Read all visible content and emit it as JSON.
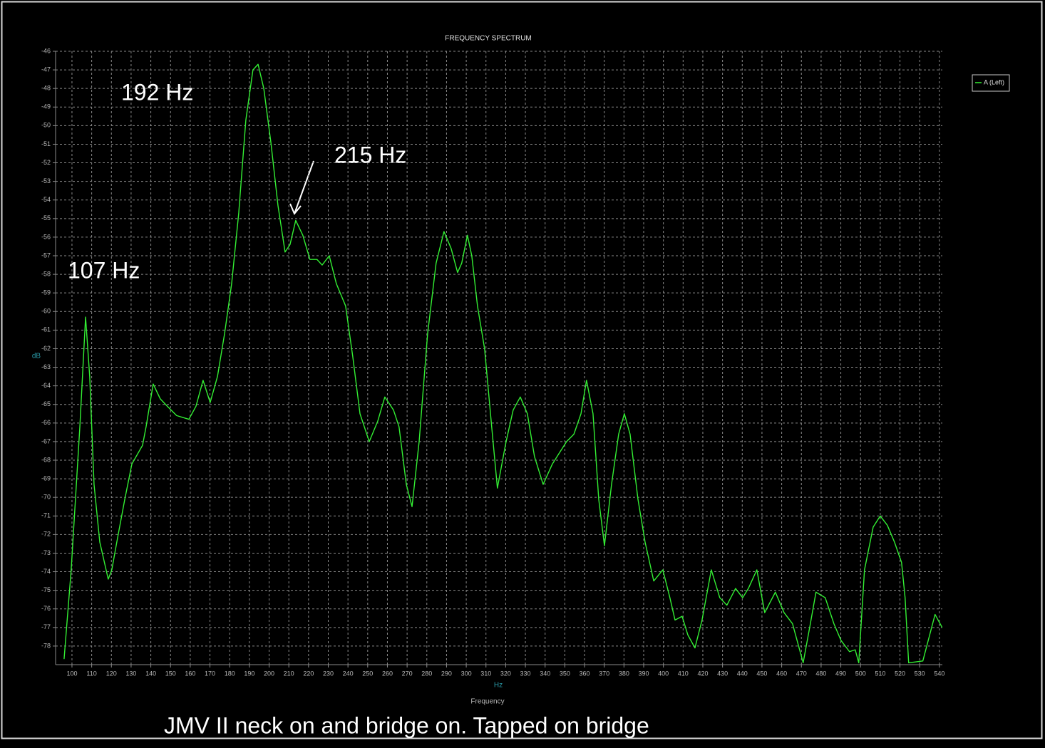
{
  "chart_data": {
    "type": "line",
    "title": "FREQUENCY SPECTRUM",
    "y_label": "dB",
    "x_unit": "Hz",
    "x_label": "Frequency",
    "caption": "JMV II neck on and bridge on. Tapped on bridge",
    "annotations": [
      "192 Hz",
      "215 Hz",
      "107 Hz"
    ],
    "legend_position": "upper right",
    "grid": true,
    "xlim": [
      91.7,
      541.5
    ],
    "ylim": [
      -79,
      -46
    ],
    "xticks": [
      100,
      110,
      120,
      130,
      140,
      150,
      160,
      170,
      180,
      190,
      200,
      210,
      220,
      230,
      240,
      250,
      260,
      270,
      280,
      290,
      300,
      310,
      320,
      330,
      340,
      350,
      360,
      370,
      380,
      390,
      400,
      410,
      420,
      430,
      440,
      450,
      460,
      470,
      480,
      490,
      500,
      510,
      520,
      530,
      540
    ],
    "yticks": [
      -46,
      -47,
      -48,
      -49,
      -50,
      -51,
      -52,
      -53,
      -54,
      -55,
      -56,
      -57,
      -58,
      -59,
      -60,
      -61,
      -62,
      -63,
      -64,
      -65,
      -66,
      -67,
      -68,
      -69,
      -70,
      -71,
      -72,
      -73,
      -74,
      -75,
      -76,
      -77,
      -78
    ],
    "x": [
      96.0,
      99.6,
      104.0,
      106.9,
      109.0,
      111.2,
      114.1,
      118.4,
      120.2,
      123.1,
      126.8,
      130.4,
      135.8,
      137.6,
      141.2,
      144.8,
      148.4,
      153.1,
      159.3,
      162.9,
      166.5,
      170.1,
      173.8,
      177.4,
      181.0,
      184.6,
      188.2,
      191.8,
      194.4,
      197.3,
      200.9,
      204.5,
      208.1,
      210.6,
      213.5,
      217.1,
      220.7,
      224.3,
      226.9,
      230.5,
      234.1,
      238.8,
      242.4,
      246.1,
      250.8,
      255.1,
      258.7,
      263.1,
      265.9,
      269.6,
      272.5,
      276.1,
      280.4,
      284.7,
      288.7,
      292.3,
      295.6,
      297.7,
      300.6,
      302.8,
      305.7,
      309.3,
      312.9,
      315.8,
      320.2,
      323.8,
      327.4,
      331.0,
      334.6,
      339.0,
      343.7,
      347.3,
      350.9,
      354.6,
      358.2,
      361.0,
      364.3,
      367.2,
      370.1,
      373.7,
      377.3,
      380.2,
      383.1,
      387.1,
      390.7,
      395.1,
      399.7,
      403.3,
      405.9,
      409.5,
      412.4,
      416.0,
      419.6,
      424.3,
      428.6,
      432.2,
      436.6,
      440.2,
      443.1,
      447.4,
      451.4,
      456.8,
      461.2,
      465.5,
      470.9,
      474.2,
      477.4,
      482.1,
      486.5,
      490.1,
      494.4,
      497.3,
      499.1,
      502.0,
      506.4,
      510.0,
      513.6,
      517.2,
      520.8,
      522.6,
      524.4,
      531.6,
      537.8,
      541.4
    ],
    "series": [
      {
        "name": "A (Left)",
        "color": "#33ee33",
        "values": [
          -78.7,
          -73.9,
          -66.2,
          -60.3,
          -63.5,
          -69.3,
          -72.4,
          -74.4,
          -73.9,
          -72.2,
          -70.1,
          -68.2,
          -67.2,
          -66.2,
          -63.9,
          -64.7,
          -65.1,
          -65.6,
          -65.8,
          -65.1,
          -63.7,
          -64.9,
          -63.5,
          -61.2,
          -58.5,
          -54.7,
          -49.7,
          -47.0,
          -46.7,
          -48.0,
          -50.9,
          -54.3,
          -56.8,
          -56.4,
          -55.1,
          -55.9,
          -57.2,
          -57.2,
          -57.5,
          -57.0,
          -58.5,
          -59.7,
          -62.4,
          -65.5,
          -67.0,
          -65.9,
          -64.6,
          -65.3,
          -66.2,
          -69.3,
          -70.5,
          -67.0,
          -61.2,
          -57.4,
          -55.7,
          -56.6,
          -57.9,
          -57.4,
          -55.9,
          -57.0,
          -59.7,
          -62.0,
          -66.2,
          -69.5,
          -67.0,
          -65.3,
          -64.6,
          -65.5,
          -67.8,
          -69.3,
          -68.2,
          -67.6,
          -67.0,
          -66.6,
          -65.5,
          -63.7,
          -65.5,
          -70.1,
          -72.6,
          -69.3,
          -66.6,
          -65.5,
          -66.6,
          -70.1,
          -72.4,
          -74.5,
          -73.9,
          -75.4,
          -76.6,
          -76.4,
          -77.4,
          -78.1,
          -76.6,
          -73.9,
          -75.4,
          -75.8,
          -74.9,
          -75.4,
          -74.9,
          -73.9,
          -76.2,
          -75.1,
          -76.2,
          -76.8,
          -78.9,
          -77.0,
          -75.1,
          -75.4,
          -76.8,
          -77.7,
          -78.3,
          -78.2,
          -78.9,
          -73.9,
          -71.6,
          -71.0,
          -71.5,
          -72.4,
          -73.5,
          -75.4,
          -78.9,
          -78.8,
          -76.3,
          -77.0
        ]
      }
    ]
  }
}
